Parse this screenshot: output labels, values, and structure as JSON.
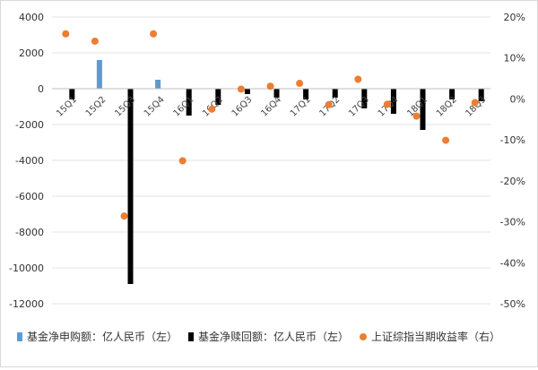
{
  "chart_data": {
    "type": "bar",
    "categories": [
      "15Q1",
      "15Q2",
      "15Q3",
      "15Q4",
      "16Q1",
      "16Q2",
      "16Q3",
      "16Q4",
      "17Q1",
      "17Q2",
      "17Q3",
      "17Q4",
      "18Q1",
      "18Q2",
      "18Q3"
    ],
    "series": [
      {
        "name": "基金净申购额：亿人民币（左）",
        "kind": "bar",
        "axis": "left",
        "values": [
          0,
          1600,
          0,
          500,
          0,
          0,
          0,
          0,
          0,
          0,
          0,
          0,
          0,
          0,
          0
        ],
        "color": "#5b9bd5"
      },
      {
        "name": "基金净赎回额：亿人民币（左）",
        "kind": "bar",
        "axis": "left",
        "values": [
          -600,
          0,
          -10900,
          0,
          -1500,
          -900,
          -300,
          -500,
          -600,
          -500,
          -1100,
          -1400,
          -2300,
          -600,
          -700
        ],
        "color": "#000000"
      },
      {
        "name": "上证综指当期收益率（右）",
        "kind": "scatter",
        "axis": "right",
        "values": [
          15.9,
          14.1,
          -28.6,
          15.9,
          -15.1,
          -2.5,
          2.4,
          3.1,
          3.8,
          -1.4,
          4.8,
          -1.3,
          -4.2,
          -10.1,
          -0.9
        ],
        "color": "#ed7d31"
      }
    ],
    "ylim_left": [
      -12000,
      4000
    ],
    "yticks_left": [
      4000,
      2000,
      0,
      -2000,
      -4000,
      -6000,
      -8000,
      -10000,
      -12000
    ],
    "ylim_right": [
      -50,
      20
    ],
    "yticks_right": [
      "20%",
      "10%",
      "0%",
      "-10%",
      "-20%",
      "-30%",
      "-40%",
      "-50%"
    ],
    "grid": true,
    "legend_position": "bottom"
  }
}
